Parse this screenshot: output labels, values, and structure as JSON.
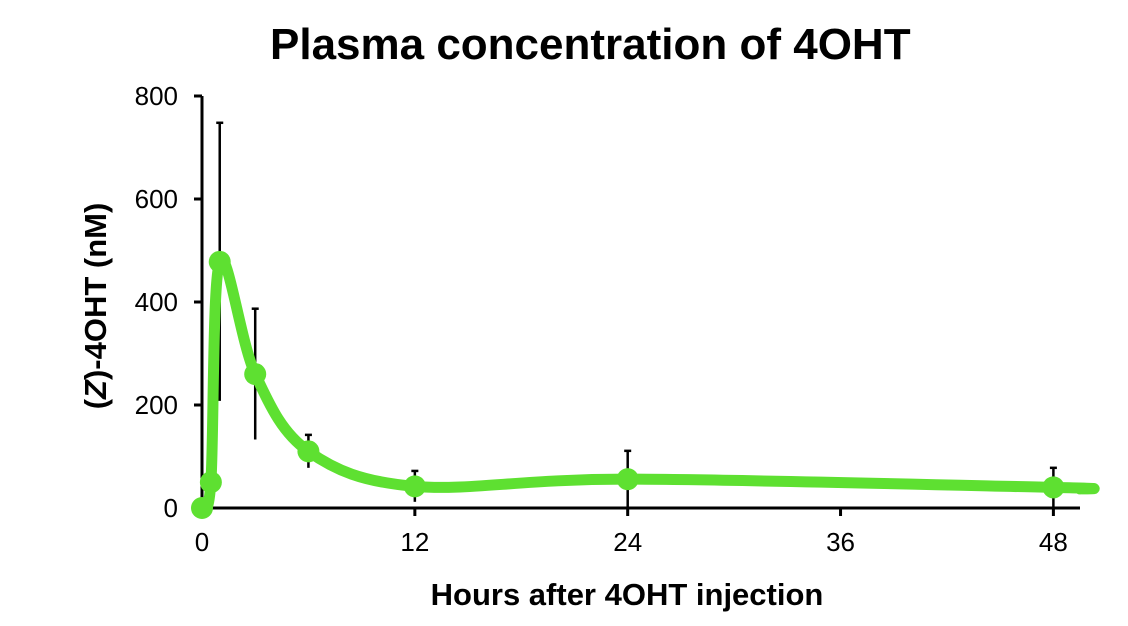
{
  "chart_data": {
    "type": "line",
    "title": "Plasma concentration of 4OHT",
    "xlabel": "Hours after 4OHT injection",
    "ylabel_prefix": "(",
    "ylabel_italic": "Z",
    "ylabel_suffix": ")-4OHT (nM)",
    "xlim": [
      0,
      49.5
    ],
    "ylim": [
      0,
      800
    ],
    "xticks": [
      0,
      12,
      24,
      36,
      48
    ],
    "yticks": [
      0,
      200,
      400,
      600,
      800
    ],
    "grid": false,
    "series": [
      {
        "color": "#5ee031",
        "points": [
          {
            "x": 0,
            "y": 0,
            "err": 0
          },
          {
            "x": 0.5,
            "y": 50,
            "err": 0
          },
          {
            "x": 1,
            "y": 478,
            "err": 270
          },
          {
            "x": 3,
            "y": 260,
            "err": 127
          },
          {
            "x": 6,
            "y": 110,
            "err": 32
          },
          {
            "x": 12,
            "y": 42,
            "err": 30
          },
          {
            "x": 24,
            "y": 56,
            "err": 55
          },
          {
            "x": 48,
            "y": 40,
            "err": 38
          }
        ],
        "curve_end": {
          "x": 49.5,
          "y": 37
        }
      }
    ]
  }
}
